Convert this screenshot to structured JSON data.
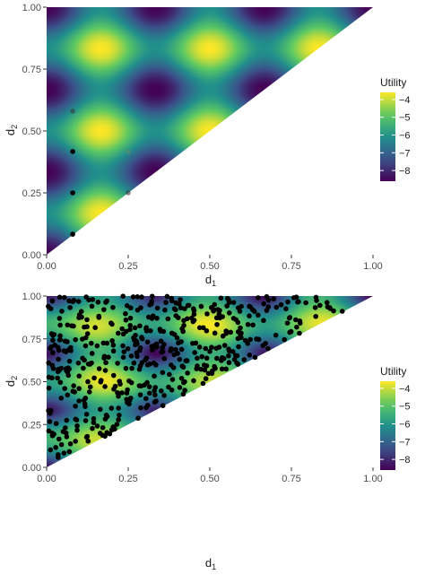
{
  "chart_data": [
    {
      "type": "heatmap",
      "title": "",
      "xlabel": "d",
      "xlabel_sub": "1",
      "ylabel": "d",
      "ylabel_sub": "2",
      "xlim": [
        0,
        1
      ],
      "ylim": [
        0,
        1
      ],
      "x_ticks": [
        "0.00",
        "0.25",
        "0.50",
        "0.75",
        "1.00"
      ],
      "y_ticks": [
        "0.00",
        "0.25",
        "0.50",
        "0.75",
        "1.00"
      ],
      "region": "d2 >= d1",
      "grid": false,
      "legend": {
        "title": "Utility",
        "placement": "right",
        "ticks": [
          "-4",
          "-5",
          "-6",
          "-7",
          "-8"
        ],
        "range": [
          -8.6,
          -3.6
        ]
      },
      "colorscale": [
        "#440154",
        "#3b528b",
        "#21908c",
        "#5dc963",
        "#fde725"
      ],
      "points": [
        {
          "x": 0.08,
          "y": 0.58,
          "shade": "gray"
        },
        {
          "x": 0.08,
          "y": 0.417,
          "shade": "black"
        },
        {
          "x": 0.25,
          "y": 0.417,
          "shade": "faint"
        },
        {
          "x": 0.08,
          "y": 0.25,
          "shade": "black"
        },
        {
          "x": 0.25,
          "y": 0.25,
          "shade": "gray"
        },
        {
          "x": 0.08,
          "y": 0.083,
          "shade": "black"
        }
      ]
    },
    {
      "type": "heatmap",
      "title": "",
      "xlabel": "d",
      "xlabel_sub": "1",
      "ylabel": "d",
      "ylabel_sub": "2",
      "xlim": [
        0,
        1
      ],
      "ylim": [
        0,
        1
      ],
      "x_ticks": [
        "0.00",
        "0.25",
        "0.50",
        "0.75",
        "1.00"
      ],
      "y_ticks": [
        "0.00",
        "0.25",
        "0.50",
        "0.75",
        "1.00"
      ],
      "region": "d2 >= d1",
      "grid": false,
      "legend": {
        "title": "Utility",
        "placement": "right",
        "ticks": [
          "-4",
          "-5",
          "-6",
          "-7",
          "-8"
        ],
        "range": [
          -8.6,
          -3.6
        ]
      },
      "colorscale": [
        "#440154",
        "#3b528b",
        "#21908c",
        "#5dc963",
        "#fde725"
      ],
      "scatter_count": 500,
      "scatter_note_visible": false
    }
  ]
}
